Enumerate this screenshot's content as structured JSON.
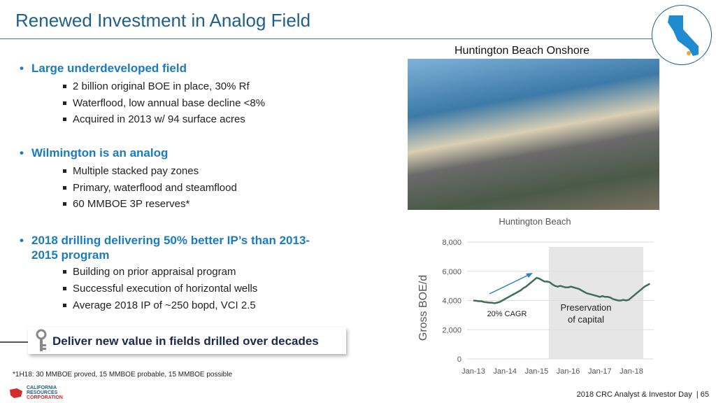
{
  "header": {
    "title": "Renewed Investment in Analog Field"
  },
  "photo_caption": "Huntington Beach Onshore",
  "bullets": [
    {
      "text": "Large underdeveloped field",
      "sub": [
        "2 billion original BOE in place, 30% Rf",
        "Waterflood, low annual base decline <8%",
        "Acquired in 2013 w/ 94 surface acres"
      ]
    },
    {
      "text": "Wilmington is an analog",
      "sub": [
        "Multiple stacked pay zones",
        "Primary, waterflood and steamflood",
        "60 MMBOE 3P reserves*"
      ]
    },
    {
      "text": "2018 drilling delivering 50% better IP’s than 2013-2015 program",
      "sub": [
        "Building on prior appraisal program",
        "Successful execution of horizontal wells",
        "Average 2018 IP of ~250 bopd, VCI 2.5"
      ]
    }
  ],
  "callout": "Deliver new value in fields drilled over decades",
  "footnote": "*1H18: 30 MMBOE proved, 15 MMBOE probable, 15 MMBOE possible",
  "logo": [
    "CALIFORNIA",
    "RESOURCES",
    "CORPORATION"
  ],
  "footer": {
    "text": "2018 CRC Analyst & Investor Day",
    "page": "65"
  },
  "chart_data": {
    "type": "line",
    "title": "Huntington Beach",
    "y_label": "Gross BOE/d",
    "categories": [
      "Jan-13",
      null,
      null,
      null,
      null,
      null,
      null,
      null,
      null,
      null,
      null,
      null,
      "Jan-14",
      null,
      null,
      null,
      null,
      null,
      null,
      null,
      null,
      null,
      null,
      null,
      "Jan-15",
      null,
      null,
      null,
      null,
      null,
      null,
      null,
      null,
      null,
      null,
      null,
      "Jan-16",
      null,
      null,
      null,
      null,
      null,
      null,
      null,
      null,
      null,
      null,
      null,
      "Jan-17",
      null,
      null,
      null,
      null,
      null,
      null,
      null,
      null,
      null,
      null,
      null,
      "Jan-18",
      null,
      null,
      null,
      null,
      null,
      null,
      null
    ],
    "series": [
      {
        "color": "#3e6e5a",
        "values": [
          4000,
          3980,
          3950,
          3950,
          3900,
          3880,
          3850,
          3850,
          3820,
          3850,
          3900,
          4000,
          4100,
          4200,
          4300,
          4400,
          4500,
          4600,
          4700,
          4850,
          4950,
          5100,
          5250,
          5400,
          5550,
          5500,
          5400,
          5300,
          5300,
          5250,
          5100,
          5000,
          4950,
          5000,
          4950,
          4900,
          4900,
          4950,
          4900,
          4850,
          4800,
          4700,
          4600,
          4500,
          4450,
          4400,
          4350,
          4300,
          4250,
          4300,
          4250,
          4250,
          4200,
          4100,
          4050,
          4000,
          4000,
          4050,
          4000,
          4050,
          4200,
          4350,
          4500,
          4650,
          4800,
          4950,
          5050,
          5150
        ]
      }
    ],
    "ylim": [
      0,
      8000
    ],
    "yticks": [
      0,
      {
        "value": 2000,
        "label": "2,000"
      },
      {
        "value": 4000,
        "label": "4,000"
      },
      {
        "value": 6000,
        "label": "6,000"
      },
      {
        "value": 8000,
        "label": "8,000"
      }
    ],
    "grid": true,
    "annotations": {
      "cagr": "20% CAGR",
      "preservation": [
        "Preservation",
        "of capital"
      ]
    }
  }
}
